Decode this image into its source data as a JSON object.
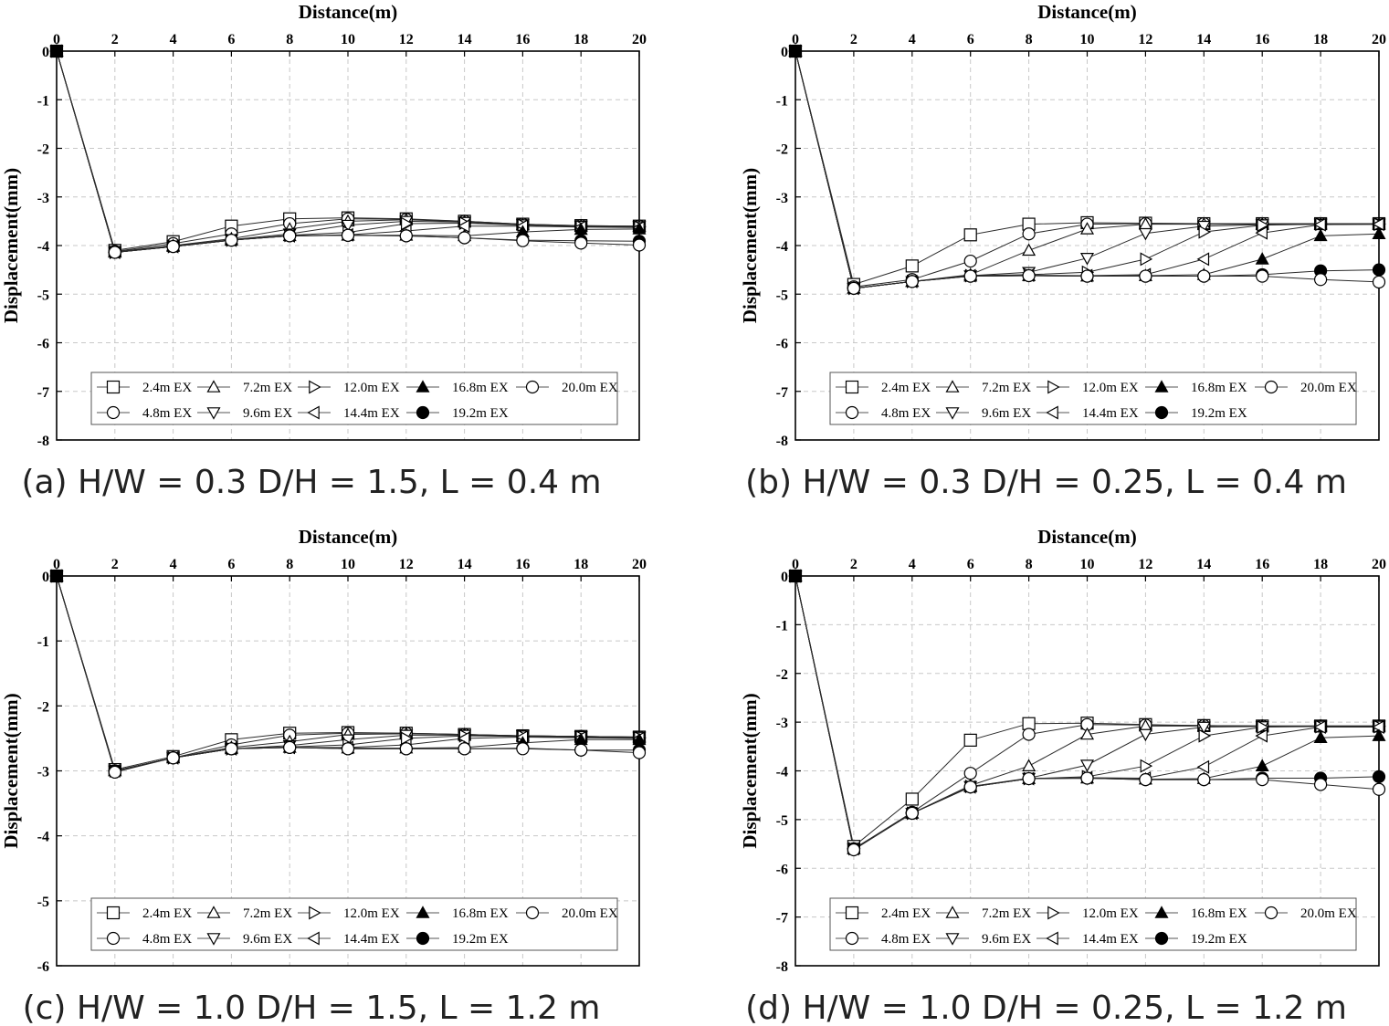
{
  "chart_data": [
    {
      "type": "line",
      "caption": "(a) H/W = 0.3 D/H = 1.5, L = 0.4 m",
      "xlabel": "Distance(m)",
      "ylabel": "Displacement(mm)",
      "xlim": [
        0,
        20
      ],
      "ylim": [
        -8,
        0
      ],
      "xticks": [
        0,
        2,
        4,
        6,
        8,
        10,
        12,
        14,
        16,
        18,
        20
      ],
      "yticks": [
        0,
        -1,
        -2,
        -3,
        -4,
        -5,
        -6,
        -7,
        -8
      ],
      "grid": true,
      "legend_position": "bottom",
      "x": [
        0,
        2,
        4,
        6,
        8,
        10,
        12,
        14,
        16,
        18,
        20
      ],
      "series": [
        {
          "name": "2.4m EX",
          "marker": "square-open",
          "values": [
            0,
            -4.1,
            -3.92,
            -3.6,
            -3.45,
            -3.43,
            -3.45,
            -3.5,
            -3.56,
            -3.59,
            -3.6
          ]
        },
        {
          "name": "4.8m EX",
          "marker": "circle-open",
          "values": [
            0,
            -4.12,
            -3.96,
            -3.76,
            -3.55,
            -3.45,
            -3.46,
            -3.5,
            -3.56,
            -3.59,
            -3.6
          ]
        },
        {
          "name": "7.2m EX",
          "marker": "triangle-up-open",
          "values": [
            0,
            -4.13,
            -4.0,
            -3.86,
            -3.66,
            -3.5,
            -3.47,
            -3.51,
            -3.57,
            -3.6,
            -3.61
          ]
        },
        {
          "name": "9.6m EX",
          "marker": "triangle-down-open",
          "values": [
            0,
            -4.14,
            -4.01,
            -3.88,
            -3.76,
            -3.58,
            -3.5,
            -3.52,
            -3.57,
            -3.6,
            -3.61
          ]
        },
        {
          "name": "12.0m EX",
          "marker": "triangle-right-open",
          "values": [
            0,
            -4.14,
            -4.02,
            -3.89,
            -3.79,
            -3.73,
            -3.55,
            -3.54,
            -3.58,
            -3.61,
            -3.62
          ]
        },
        {
          "name": "14.4m EX",
          "marker": "triangle-left-open",
          "values": [
            0,
            -4.14,
            -4.02,
            -3.89,
            -3.8,
            -3.78,
            -3.7,
            -3.6,
            -3.6,
            -3.62,
            -3.63
          ]
        },
        {
          "name": "16.8m EX",
          "marker": "triangle-up-filled",
          "values": [
            0,
            -4.14,
            -4.02,
            -3.89,
            -3.8,
            -3.79,
            -3.79,
            -3.8,
            -3.72,
            -3.67,
            -3.66
          ]
        },
        {
          "name": "19.2m EX",
          "marker": "circle-filled",
          "values": [
            0,
            -4.14,
            -4.02,
            -3.89,
            -3.8,
            -3.79,
            -3.8,
            -3.84,
            -3.89,
            -3.9,
            -3.91
          ]
        },
        {
          "name": "20.0m EX",
          "marker": "circle-open",
          "values": [
            0,
            -4.14,
            -4.02,
            -3.89,
            -3.8,
            -3.79,
            -3.8,
            -3.84,
            -3.9,
            -3.95,
            -3.99
          ]
        }
      ]
    },
    {
      "type": "line",
      "caption": "(b) H/W = 0.3 D/H = 0.25, L = 0.4 m",
      "xlabel": "Distance(m)",
      "ylabel": "Displacement(mm)",
      "xlim": [
        0,
        20
      ],
      "ylim": [
        -8,
        0
      ],
      "xticks": [
        0,
        2,
        4,
        6,
        8,
        10,
        12,
        14,
        16,
        18,
        20
      ],
      "yticks": [
        0,
        -1,
        -2,
        -3,
        -4,
        -5,
        -6,
        -7,
        -8
      ],
      "grid": true,
      "legend_position": "bottom",
      "x": [
        0,
        2,
        4,
        6,
        8,
        10,
        12,
        14,
        16,
        18,
        20
      ],
      "series": [
        {
          "name": "2.4m EX",
          "marker": "square-open",
          "values": [
            0,
            -4.8,
            -4.42,
            -3.78,
            -3.56,
            -3.53,
            -3.54,
            -3.55,
            -3.55,
            -3.55,
            -3.55
          ]
        },
        {
          "name": "4.8m EX",
          "marker": "circle-open",
          "values": [
            0,
            -4.85,
            -4.7,
            -4.32,
            -3.76,
            -3.56,
            -3.55,
            -3.55,
            -3.55,
            -3.55,
            -3.55
          ]
        },
        {
          "name": "7.2m EX",
          "marker": "triangle-up-open",
          "values": [
            0,
            -4.88,
            -4.74,
            -4.6,
            -4.1,
            -3.66,
            -3.56,
            -3.56,
            -3.56,
            -3.56,
            -3.56
          ]
        },
        {
          "name": "9.6m EX",
          "marker": "triangle-down-open",
          "values": [
            0,
            -4.88,
            -4.74,
            -4.62,
            -4.55,
            -4.26,
            -3.75,
            -3.6,
            -3.57,
            -3.56,
            -3.56
          ]
        },
        {
          "name": "12.0m EX",
          "marker": "triangle-right-open",
          "values": [
            0,
            -4.88,
            -4.74,
            -4.62,
            -4.6,
            -4.55,
            -4.28,
            -3.72,
            -3.58,
            -3.56,
            -3.56
          ]
        },
        {
          "name": "14.4m EX",
          "marker": "triangle-left-open",
          "values": [
            0,
            -4.88,
            -4.74,
            -4.62,
            -4.61,
            -4.62,
            -4.6,
            -4.28,
            -3.74,
            -3.57,
            -3.56
          ]
        },
        {
          "name": "16.8m EX",
          "marker": "triangle-up-filled",
          "values": [
            0,
            -4.88,
            -4.74,
            -4.63,
            -4.62,
            -4.63,
            -4.62,
            -4.6,
            -4.28,
            -3.8,
            -3.76
          ]
        },
        {
          "name": "19.2m EX",
          "marker": "circle-filled",
          "values": [
            0,
            -4.88,
            -4.74,
            -4.63,
            -4.62,
            -4.63,
            -4.63,
            -4.63,
            -4.6,
            -4.52,
            -4.5
          ]
        },
        {
          "name": "20.0m EX",
          "marker": "circle-open",
          "values": [
            0,
            -4.88,
            -4.74,
            -4.63,
            -4.62,
            -4.63,
            -4.63,
            -4.63,
            -4.63,
            -4.7,
            -4.75
          ]
        }
      ]
    },
    {
      "type": "line",
      "caption": "(c) H/W = 1.0 D/H = 1.5, L = 1.2 m",
      "xlabel": "Distance(m)",
      "ylabel": "Displacement(mm)",
      "xlim": [
        0,
        20
      ],
      "ylim": [
        -6,
        0
      ],
      "xticks": [
        0,
        2,
        4,
        6,
        8,
        10,
        12,
        14,
        16,
        18,
        20
      ],
      "yticks": [
        0,
        -1,
        -2,
        -3,
        -4,
        -5,
        -6
      ],
      "grid": true,
      "legend_position": "bottom",
      "x": [
        0,
        2,
        4,
        6,
        8,
        10,
        12,
        14,
        16,
        18,
        20
      ],
      "series": [
        {
          "name": "2.4m EX",
          "marker": "square-open",
          "values": [
            0,
            -2.98,
            -2.78,
            -2.52,
            -2.42,
            -2.41,
            -2.42,
            -2.44,
            -2.46,
            -2.47,
            -2.48
          ]
        },
        {
          "name": "4.8m EX",
          "marker": "circle-open",
          "values": [
            0,
            -3.0,
            -2.8,
            -2.6,
            -2.45,
            -2.42,
            -2.42,
            -2.44,
            -2.46,
            -2.47,
            -2.48
          ]
        },
        {
          "name": "7.2m EX",
          "marker": "triangle-up-open",
          "values": [
            0,
            -3.0,
            -2.8,
            -2.64,
            -2.55,
            -2.44,
            -2.43,
            -2.44,
            -2.46,
            -2.47,
            -2.48
          ]
        },
        {
          "name": "9.6m EX",
          "marker": "triangle-down-open",
          "values": [
            0,
            -3.0,
            -2.8,
            -2.66,
            -2.61,
            -2.52,
            -2.45,
            -2.45,
            -2.46,
            -2.47,
            -2.48
          ]
        },
        {
          "name": "12.0m EX",
          "marker": "triangle-right-open",
          "values": [
            0,
            -3.0,
            -2.8,
            -2.66,
            -2.63,
            -2.6,
            -2.5,
            -2.46,
            -2.47,
            -2.48,
            -2.49
          ]
        },
        {
          "name": "14.4m EX",
          "marker": "triangle-left-open",
          "values": [
            0,
            -3.0,
            -2.8,
            -2.66,
            -2.64,
            -2.64,
            -2.6,
            -2.5,
            -2.48,
            -2.49,
            -2.5
          ]
        },
        {
          "name": "16.8m EX",
          "marker": "triangle-up-filled",
          "values": [
            0,
            -3.0,
            -2.8,
            -2.66,
            -2.64,
            -2.65,
            -2.65,
            -2.64,
            -2.57,
            -2.52,
            -2.52
          ]
        },
        {
          "name": "19.2m EX",
          "marker": "circle-filled",
          "values": [
            0,
            -3.0,
            -2.8,
            -2.66,
            -2.64,
            -2.66,
            -2.66,
            -2.66,
            -2.65,
            -2.68,
            -2.68
          ]
        },
        {
          "name": "20.0m EX",
          "marker": "circle-open",
          "values": [
            0,
            -3.02,
            -2.8,
            -2.66,
            -2.64,
            -2.66,
            -2.66,
            -2.66,
            -2.66,
            -2.68,
            -2.72
          ]
        }
      ]
    },
    {
      "type": "line",
      "caption": "(d) H/W = 1.0 D/H = 0.25, L = 1.2 m",
      "xlabel": "Distance(m)",
      "ylabel": "Displacement(mm)",
      "xlim": [
        0,
        20
      ],
      "ylim": [
        -8,
        0
      ],
      "xticks": [
        0,
        2,
        4,
        6,
        8,
        10,
        12,
        14,
        16,
        18,
        20
      ],
      "yticks": [
        0,
        -1,
        -2,
        -3,
        -4,
        -5,
        -6,
        -7,
        -8
      ],
      "grid": true,
      "legend_position": "bottom",
      "x": [
        0,
        2,
        4,
        6,
        8,
        10,
        12,
        14,
        16,
        18,
        20
      ],
      "series": [
        {
          "name": "2.4m EX",
          "marker": "square-open",
          "values": [
            0,
            -5.55,
            -4.58,
            -3.37,
            -3.03,
            -3.02,
            -3.05,
            -3.07,
            -3.08,
            -3.08,
            -3.08
          ]
        },
        {
          "name": "4.8m EX",
          "marker": "circle-open",
          "values": [
            0,
            -5.6,
            -4.85,
            -4.05,
            -3.25,
            -3.05,
            -3.06,
            -3.07,
            -3.08,
            -3.08,
            -3.08
          ]
        },
        {
          "name": "7.2m EX",
          "marker": "triangle-up-open",
          "values": [
            0,
            -5.6,
            -4.87,
            -4.3,
            -3.9,
            -3.25,
            -3.08,
            -3.08,
            -3.08,
            -3.08,
            -3.08
          ]
        },
        {
          "name": "9.6m EX",
          "marker": "triangle-down-open",
          "values": [
            0,
            -5.6,
            -4.87,
            -4.32,
            -4.15,
            -3.88,
            -3.25,
            -3.1,
            -3.09,
            -3.08,
            -3.08
          ]
        },
        {
          "name": "12.0m EX",
          "marker": "triangle-right-open",
          "values": [
            0,
            -5.6,
            -4.87,
            -4.32,
            -4.16,
            -4.12,
            -3.9,
            -3.28,
            -3.1,
            -3.09,
            -3.09
          ]
        },
        {
          "name": "14.4m EX",
          "marker": "triangle-left-open",
          "values": [
            0,
            -5.6,
            -4.87,
            -4.33,
            -4.16,
            -4.14,
            -4.15,
            -3.92,
            -3.28,
            -3.1,
            -3.1
          ]
        },
        {
          "name": "16.8m EX",
          "marker": "triangle-up-filled",
          "values": [
            0,
            -5.6,
            -4.87,
            -4.33,
            -4.16,
            -4.15,
            -4.17,
            -4.16,
            -3.9,
            -3.32,
            -3.28
          ]
        },
        {
          "name": "19.2m EX",
          "marker": "circle-filled",
          "values": [
            0,
            -5.6,
            -4.87,
            -4.33,
            -4.16,
            -4.15,
            -4.18,
            -4.18,
            -4.15,
            -4.15,
            -4.12
          ]
        },
        {
          "name": "20.0m EX",
          "marker": "circle-open",
          "values": [
            0,
            -5.62,
            -4.87,
            -4.33,
            -4.16,
            -4.15,
            -4.18,
            -4.18,
            -4.18,
            -4.28,
            -4.38
          ]
        }
      ]
    }
  ]
}
